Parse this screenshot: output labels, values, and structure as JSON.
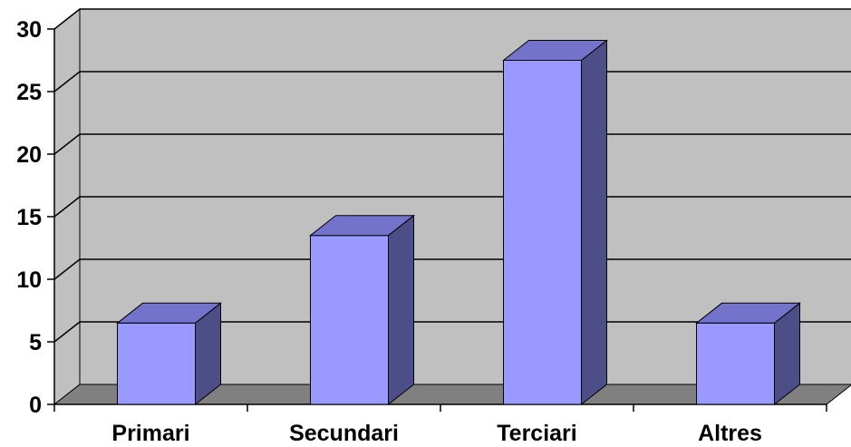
{
  "chart_data": {
    "type": "bar",
    "style": "3d-column",
    "categories": [
      "Primari",
      "Secundari",
      "Terciari",
      "Altres"
    ],
    "values": [
      6.5,
      13.5,
      27.5,
      6.5
    ],
    "ylim": [
      0,
      30
    ],
    "yticks": [
      "0",
      "5",
      "10",
      "15",
      "20",
      "25",
      "30"
    ],
    "grid": true,
    "legend": "none",
    "colors": {
      "bar_front": "#9999ff",
      "bar_top": "#7373cc",
      "bar_side": "#4d4d87",
      "wall": "#c0c0c0",
      "floor": "#808080",
      "gridline": "#000000"
    }
  }
}
